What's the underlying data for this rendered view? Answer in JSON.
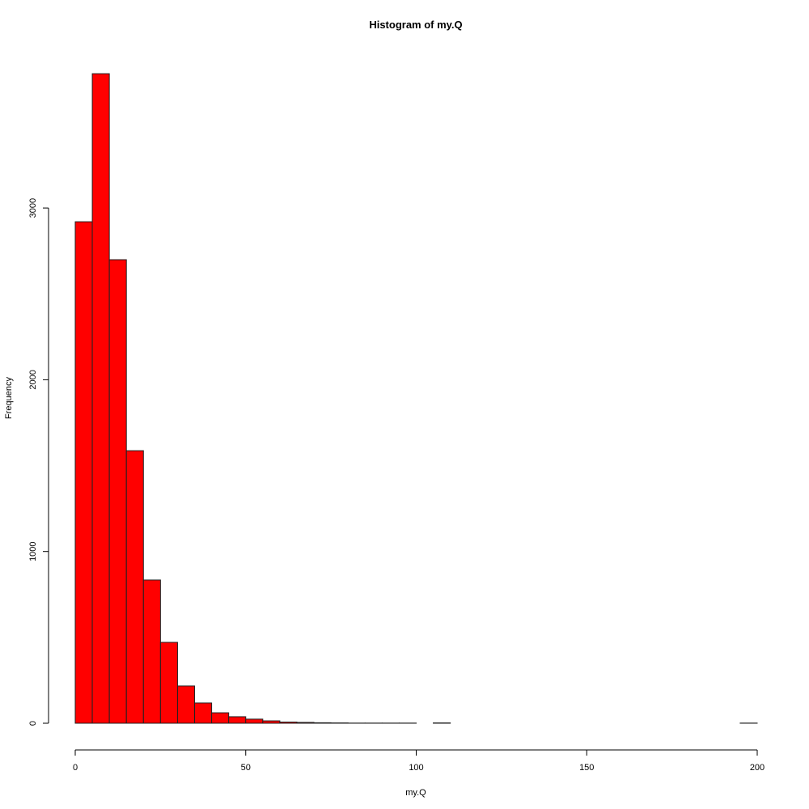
{
  "chart_data": {
    "type": "bar",
    "title": "Histogram of my.Q",
    "xlabel": "my.Q",
    "ylabel": "Frequency",
    "bin_width": 5,
    "xlim": [
      0,
      200
    ],
    "ylim": [
      0,
      3782
    ],
    "x_ticks": [
      0,
      50,
      100,
      150,
      200
    ],
    "y_ticks": [
      0,
      1000,
      2000,
      3000
    ],
    "bin_starts": [
      0,
      5,
      10,
      15,
      20,
      25,
      30,
      35,
      40,
      45,
      50,
      55,
      60,
      65,
      70,
      75,
      80,
      85,
      90,
      95,
      100,
      105,
      110,
      115,
      120,
      125,
      130,
      135,
      140,
      145,
      150,
      155,
      160,
      165,
      170,
      175,
      180,
      185,
      190,
      195
    ],
    "values": [
      2920,
      3782,
      2699,
      1587,
      834,
      471,
      217,
      118,
      61,
      38,
      24,
      14,
      7,
      5,
      3,
      2,
      1,
      1,
      1,
      1,
      0,
      2,
      0,
      0,
      0,
      0,
      0,
      0,
      0,
      0,
      0,
      0,
      0,
      0,
      0,
      0,
      0,
      0,
      0,
      1
    ],
    "bar_color": "#ff0000",
    "grid": false
  }
}
